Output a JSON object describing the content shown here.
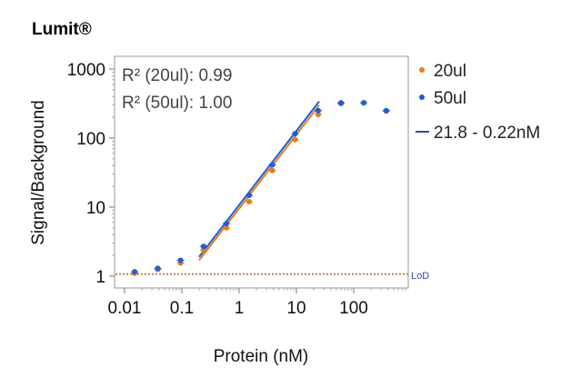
{
  "brand": "Lumit®",
  "chart_data": {
    "type": "scatter",
    "title": "",
    "xlabel": "Protein (nM)",
    "ylabel": "Signal/Background",
    "xscale": "log",
    "yscale": "log",
    "xlim": [
      0.007,
      800
    ],
    "ylim": [
      0.75,
      1500
    ],
    "xticks": [
      0.01,
      0.1,
      1,
      10,
      100
    ],
    "xtick_labels": [
      "0.01",
      "0.1",
      "1",
      "10",
      "100"
    ],
    "yticks": [
      1,
      10,
      100,
      1000
    ],
    "ytick_labels": [
      "1",
      "10",
      "100",
      "1000"
    ],
    "x": [
      0.015,
      0.038,
      0.095,
      0.24,
      0.6,
      1.5,
      3.8,
      9.5,
      24,
      60,
      150,
      370
    ],
    "series": [
      {
        "name": "20ul",
        "color": "#e67e14",
        "values": [
          1.1,
          1.25,
          1.55,
          2.4,
          5.0,
          12,
          34,
          95,
          220,
          315,
          325,
          245
        ]
      },
      {
        "name": "50ul",
        "color": "#1a5fd6",
        "values": [
          1.16,
          1.3,
          1.7,
          2.7,
          5.8,
          14.8,
          41,
          116,
          250,
          325,
          325,
          250
        ]
      }
    ],
    "fits": [
      {
        "series": "20ul",
        "color": "#e67e14",
        "x": [
          0.2,
          25
        ],
        "y": [
          1.7,
          300
        ]
      },
      {
        "series": "50ul",
        "color": "#1a5fd6",
        "x": [
          0.2,
          25
        ],
        "y": [
          1.9,
          340
        ]
      }
    ],
    "fit_legend": "21.8 - 0.22nM",
    "fit_legend_color": "#2a4fb0",
    "annotations": [
      "R² (20ul): 0.99",
      "R² (50ul): 1.00"
    ],
    "lod": {
      "label": "LoD",
      "value": 1.07,
      "color": "#c0601a",
      "label_color": "#2a4fb0"
    },
    "legend_position": "right"
  }
}
